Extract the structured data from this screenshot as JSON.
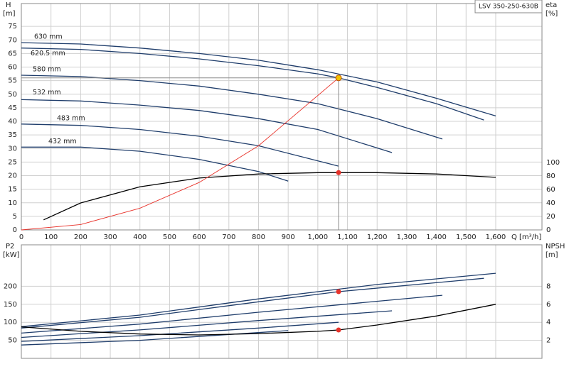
{
  "chart_data": [
    {
      "type": "line",
      "title": "LSV 350-250-630B",
      "ylabel": "H",
      "yunit": "[m]",
      "y2label": "eta",
      "y2unit": "[%]",
      "xlabel": "Q [m³/h]",
      "xlim": [
        0,
        1756
      ],
      "ylim": [
        0,
        83.4
      ],
      "y2lim": [
        0,
        335.8
      ],
      "grid": true,
      "xticks": [
        0,
        100,
        200,
        300,
        400,
        500,
        600,
        700,
        800,
        900,
        {
          "value": 1000,
          "label": "1,000"
        },
        {
          "value": 1100,
          "label": "1,100"
        },
        {
          "value": 1200,
          "label": "1,200"
        },
        {
          "value": 1300,
          "label": "1,300"
        },
        {
          "value": 1400,
          "label": "1,400"
        },
        {
          "value": 1500,
          "label": "1,500"
        },
        {
          "value": 1600,
          "label": "1,600"
        }
      ],
      "yticks": [
        0,
        5,
        10,
        15,
        20,
        25,
        30,
        35,
        40,
        45,
        50,
        55,
        60,
        65,
        70,
        75
      ],
      "y2ticks": [
        0,
        20,
        40,
        60,
        80,
        100
      ],
      "series": [
        {
          "name": "630 mm",
          "color": "#1f3d6b",
          "x": [
            0,
            200,
            400,
            600,
            800,
            1000,
            1200,
            1400,
            1600
          ],
          "values": [
            69,
            68.5,
            67,
            65,
            62.5,
            59,
            54.5,
            48.5,
            42
          ]
        },
        {
          "name": "620.5 mm",
          "color": "#1f3d6b",
          "x": [
            0,
            200,
            400,
            600,
            800,
            1000,
            1070,
            1200,
            1400,
            1560
          ],
          "values": [
            67,
            66.5,
            65,
            63,
            60.5,
            57.5,
            56,
            52.5,
            46.5,
            40.5
          ]
        },
        {
          "name": "580 mm",
          "color": "#1f3d6b",
          "x": [
            0,
            200,
            400,
            600,
            800,
            1000,
            1200,
            1420
          ],
          "values": [
            57,
            56.5,
            55,
            53,
            50,
            46.5,
            41,
            33.5
          ]
        },
        {
          "name": "532 mm",
          "color": "#1f3d6b",
          "x": [
            0,
            200,
            400,
            600,
            800,
            1000,
            1250
          ],
          "values": [
            48,
            47.5,
            46,
            44,
            41,
            37,
            28.5
          ]
        },
        {
          "name": "483 mm",
          "color": "#1f3d6b",
          "x": [
            0,
            200,
            400,
            600,
            800,
            1070
          ],
          "values": [
            39,
            38.5,
            37,
            34.5,
            31,
            23.5
          ]
        },
        {
          "name": "432 mm",
          "color": "#1f3d6b",
          "x": [
            0,
            200,
            400,
            600,
            800,
            900
          ],
          "values": [
            30.5,
            30.5,
            29,
            26,
            21.5,
            18
          ]
        },
        {
          "color": "#000000",
          "axis": "y2",
          "x": [
            75,
            200,
            400,
            600,
            800,
            1000,
            1070,
            1200,
            1400,
            1600
          ],
          "values": [
            15,
            40,
            64,
            77,
            83,
            85,
            85,
            85,
            83,
            78
          ]
        },
        {
          "color": "#e8322a",
          "x": [
            0,
            200,
            400,
            600,
            800,
            1070
          ],
          "values": [
            0,
            2,
            8,
            17.5,
            31,
            56
          ]
        },
        {
          "color": "#f2c200",
          "marker": "circle",
          "guides": true,
          "x": [
            1070
          ],
          "values": [
            56
          ]
        },
        {
          "color": "#e8322a",
          "marker": "circle",
          "axis": "y2",
          "x": [
            1070
          ],
          "values": [
            85
          ]
        }
      ]
    },
    {
      "type": "line",
      "ylabel": "P2",
      "yunit": "[kW]",
      "y2label": "NPSH",
      "y2unit": "[m]",
      "xlim": [
        0,
        1756
      ],
      "ylim": [
        0,
        315
      ],
      "y2lim": [
        0,
        12.6
      ],
      "grid": true,
      "xticks": [
        0,
        100,
        200,
        300,
        400,
        500,
        600,
        700,
        800,
        900,
        1000,
        1100,
        1200,
        1300,
        1400,
        1500,
        1600
      ],
      "yticks": [
        50,
        100,
        150,
        200
      ],
      "y2ticks": [
        2,
        4,
        6,
        8
      ],
      "series": [
        {
          "color": "#1f3d6b",
          "x": [
            0,
            400,
            800,
            1200,
            1600
          ],
          "values": [
            88,
            120,
            165,
            205,
            236
          ]
        },
        {
          "color": "#1f3d6b",
          "x": [
            0,
            400,
            800,
            1070,
            1560
          ],
          "values": [
            84,
            114,
            157,
            185,
            222
          ]
        },
        {
          "color": "#1f3d6b",
          "x": [
            0,
            400,
            800,
            1420
          ],
          "values": [
            70,
            95,
            128,
            175
          ]
        },
        {
          "color": "#1f3d6b",
          "x": [
            0,
            400,
            800,
            1250
          ],
          "values": [
            58,
            79,
            105,
            132
          ]
        },
        {
          "color": "#1f3d6b",
          "x": [
            0,
            400,
            800,
            1070
          ],
          "values": [
            47,
            63,
            84,
            100
          ]
        },
        {
          "color": "#1f3d6b",
          "x": [
            0,
            400,
            900
          ],
          "values": [
            37,
            50,
            77
          ]
        },
        {
          "color": "#000000",
          "axis": "y2",
          "x": [
            0,
            200,
            400,
            600,
            800,
            1000,
            1070,
            1200,
            1400,
            1600
          ],
          "values": [
            3.5,
            3.0,
            2.7,
            2.6,
            2.75,
            3.0,
            3.15,
            3.7,
            4.7,
            6.0
          ]
        },
        {
          "color": "#e8322a",
          "marker": "circle",
          "x": [
            1070
          ],
          "values": [
            185
          ]
        },
        {
          "color": "#e8322a",
          "marker": "circle",
          "axis": "y2",
          "x": [
            1070
          ],
          "values": [
            3.15
          ]
        }
      ]
    }
  ]
}
